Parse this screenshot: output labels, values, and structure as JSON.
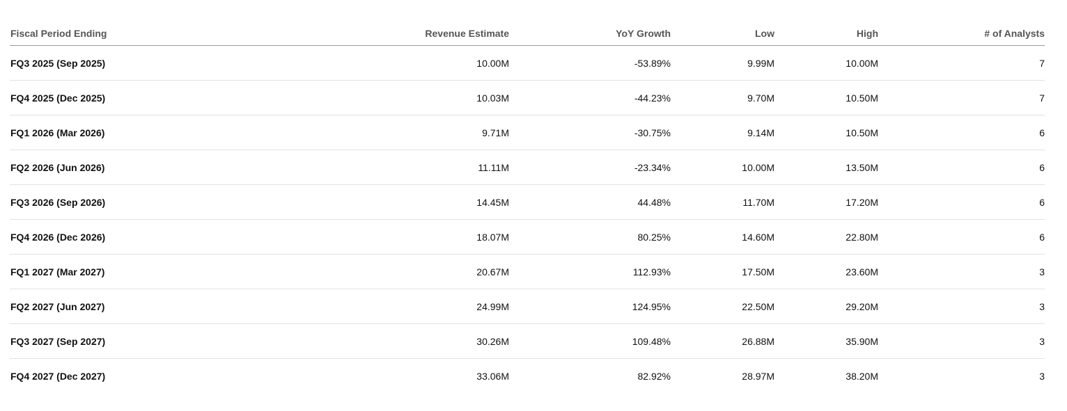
{
  "table": {
    "columns": [
      "Fiscal Period Ending",
      "Revenue Estimate",
      "YoY Growth",
      "Low",
      "High",
      "# of Analysts"
    ],
    "rows": [
      [
        "FQ3 2025 (Sep 2025)",
        "10.00M",
        "-53.89%",
        "9.99M",
        "10.00M",
        "7"
      ],
      [
        "FQ4 2025 (Dec 2025)",
        "10.03M",
        "-44.23%",
        "9.70M",
        "10.50M",
        "7"
      ],
      [
        "FQ1 2026 (Mar 2026)",
        "9.71M",
        "-30.75%",
        "9.14M",
        "10.50M",
        "6"
      ],
      [
        "FQ2 2026 (Jun 2026)",
        "11.11M",
        "-23.34%",
        "10.00M",
        "13.50M",
        "6"
      ],
      [
        "FQ3 2026 (Sep 2026)",
        "14.45M",
        "44.48%",
        "11.70M",
        "17.20M",
        "6"
      ],
      [
        "FQ4 2026 (Dec 2026)",
        "18.07M",
        "80.25%",
        "14.60M",
        "22.80M",
        "6"
      ],
      [
        "FQ1 2027 (Mar 2027)",
        "20.67M",
        "112.93%",
        "17.50M",
        "23.60M",
        "3"
      ],
      [
        "FQ2 2027 (Jun 2027)",
        "24.99M",
        "124.95%",
        "22.50M",
        "29.20M",
        "3"
      ],
      [
        "FQ3 2027 (Sep 2027)",
        "30.26M",
        "109.48%",
        "26.88M",
        "35.90M",
        "3"
      ],
      [
        "FQ4 2027 (Dec 2027)",
        "33.06M",
        "82.92%",
        "28.97M",
        "38.20M",
        "3"
      ]
    ]
  }
}
